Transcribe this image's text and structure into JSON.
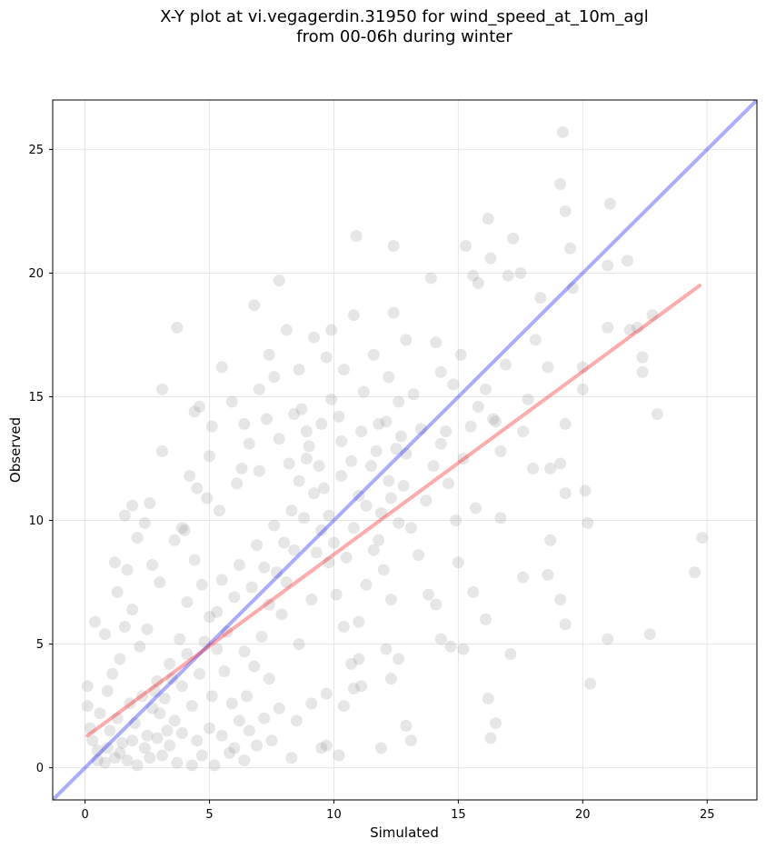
{
  "chart_data": {
    "type": "scatter",
    "title_lines": [
      "X-Y plot at vi.vegagerdin.31950 for wind_speed_at_10m_agl",
      "from 00-06h during winter"
    ],
    "xlabel": "Simulated",
    "ylabel": "Observed",
    "xlim": [
      -1.3,
      27.0
    ],
    "ylim": [
      -1.3,
      27.0
    ],
    "xticks": [
      0,
      5,
      10,
      15,
      20,
      25
    ],
    "yticks": [
      0,
      5,
      10,
      15,
      20,
      25
    ],
    "grid": true,
    "colors": {
      "points": "#808080",
      "identity_line": "#0000ff",
      "fit_line": "#ff0000",
      "grid": "#e6e6e6",
      "frame": "#000000"
    },
    "series": [
      {
        "kind": "scatter",
        "points": [
          [
            0.1,
            3.3
          ],
          [
            0.1,
            2.5
          ],
          [
            0.4,
            5.9
          ],
          [
            0.8,
            5.4
          ],
          [
            1.2,
            8.3
          ],
          [
            1.3,
            7.1
          ],
          [
            1.6,
            10.2
          ],
          [
            1.7,
            8.0
          ],
          [
            1.9,
            10.6
          ],
          [
            2.1,
            9.3
          ],
          [
            2.4,
            9.9
          ],
          [
            2.6,
            10.7
          ],
          [
            2.7,
            8.2
          ],
          [
            3.0,
            7.5
          ],
          [
            3.1,
            15.3
          ],
          [
            3.1,
            12.8
          ],
          [
            3.6,
            9.2
          ],
          [
            3.7,
            17.8
          ],
          [
            3.9,
            9.7
          ],
          [
            4.2,
            11.8
          ],
          [
            4.4,
            14.4
          ],
          [
            4.6,
            14.6
          ],
          [
            4.9,
            10.9
          ],
          [
            5.1,
            13.8
          ],
          [
            5.5,
            16.2
          ],
          [
            5.9,
            14.8
          ],
          [
            6.3,
            12.1
          ],
          [
            6.4,
            13.9
          ],
          [
            6.8,
            18.7
          ],
          [
            7.0,
            15.3
          ],
          [
            7.4,
            16.7
          ],
          [
            7.6,
            15.8
          ],
          [
            7.8,
            19.7
          ],
          [
            8.1,
            17.7
          ],
          [
            8.4,
            14.3
          ],
          [
            8.6,
            16.1
          ],
          [
            8.9,
            13.6
          ],
          [
            9.2,
            17.4
          ],
          [
            9.5,
            13.9
          ],
          [
            9.7,
            16.6
          ],
          [
            9.9,
            17.7
          ],
          [
            10.2,
            14.2
          ],
          [
            10.4,
            16.1
          ],
          [
            10.8,
            18.3
          ],
          [
            10.9,
            21.5
          ],
          [
            11.2,
            15.2
          ],
          [
            11.6,
            16.7
          ],
          [
            11.8,
            13.9
          ],
          [
            12.2,
            15.8
          ],
          [
            12.4,
            18.4
          ],
          [
            12.4,
            21.1
          ],
          [
            12.6,
            14.8
          ],
          [
            12.9,
            17.3
          ],
          [
            13.2,
            15.1
          ],
          [
            13.5,
            13.7
          ],
          [
            13.9,
            19.8
          ],
          [
            14.1,
            17.2
          ],
          [
            14.3,
            16.0
          ],
          [
            14.5,
            13.6
          ],
          [
            14.8,
            15.5
          ],
          [
            15.1,
            16.7
          ],
          [
            15.3,
            21.1
          ],
          [
            15.6,
            19.9
          ],
          [
            15.8,
            19.6
          ],
          [
            16.2,
            22.2
          ],
          [
            16.3,
            20.6
          ],
          [
            16.5,
            14.0
          ],
          [
            16.9,
            16.3
          ],
          [
            17.0,
            19.9
          ],
          [
            17.2,
            21.4
          ],
          [
            17.5,
            20.0
          ],
          [
            17.8,
            14.9
          ],
          [
            18.1,
            17.3
          ],
          [
            18.3,
            19.0
          ],
          [
            18.6,
            16.2
          ],
          [
            19.2,
            25.7
          ],
          [
            19.1,
            23.6
          ],
          [
            19.3,
            22.5
          ],
          [
            19.5,
            21.0
          ],
          [
            19.6,
            19.4
          ],
          [
            20.0,
            16.2
          ],
          [
            21.1,
            22.8
          ],
          [
            21.0,
            20.3
          ],
          [
            21.8,
            20.5
          ],
          [
            21.9,
            17.7
          ],
          [
            22.2,
            17.8
          ],
          [
            22.4,
            16.6
          ],
          [
            22.4,
            16.0
          ],
          [
            22.8,
            18.3
          ],
          [
            23.0,
            14.3
          ],
          [
            19.3,
            13.9
          ],
          [
            20.0,
            15.3
          ],
          [
            21.0,
            17.8
          ],
          [
            19.1,
            12.3
          ],
          [
            20.1,
            11.2
          ],
          [
            19.3,
            11.1
          ],
          [
            20.2,
            9.9
          ],
          [
            24.5,
            7.9
          ],
          [
            24.8,
            9.3
          ],
          [
            22.7,
            5.4
          ],
          [
            21.0,
            5.2
          ],
          [
            20.3,
            3.4
          ],
          [
            19.3,
            5.8
          ],
          [
            19.1,
            6.8
          ],
          [
            18.6,
            7.8
          ],
          [
            18.7,
            9.2
          ],
          [
            18.0,
            12.1
          ],
          [
            18.7,
            12.1
          ],
          [
            17.6,
            13.6
          ],
          [
            17.6,
            7.7
          ],
          [
            17.1,
            4.6
          ],
          [
            16.5,
            1.8
          ],
          [
            16.3,
            1.2
          ],
          [
            16.2,
            2.8
          ],
          [
            16.1,
            6.0
          ],
          [
            16.7,
            10.1
          ],
          [
            15.7,
            10.5
          ],
          [
            15.6,
            7.1
          ],
          [
            15.0,
            8.3
          ],
          [
            15.2,
            4.8
          ],
          [
            14.7,
            4.9
          ],
          [
            14.3,
            5.2
          ],
          [
            14.1,
            6.6
          ],
          [
            13.8,
            7.0
          ],
          [
            13.1,
            1.1
          ],
          [
            12.9,
            1.7
          ],
          [
            12.3,
            3.6
          ],
          [
            12.1,
            4.8
          ],
          [
            12.6,
            4.4
          ],
          [
            12.3,
            6.8
          ],
          [
            11.9,
            0.8
          ],
          [
            11.0,
            4.4
          ],
          [
            10.8,
            3.2
          ],
          [
            10.2,
            0.5
          ],
          [
            9.7,
            0.9
          ],
          [
            9.5,
            0.8
          ],
          [
            8.3,
            0.4
          ],
          [
            7.5,
            1.1
          ],
          [
            6.9,
            0.9
          ],
          [
            6.4,
            0.3
          ],
          [
            5.8,
            0.6
          ],
          [
            5.2,
            0.1
          ],
          [
            4.7,
            0.5
          ],
          [
            4.3,
            0.1
          ],
          [
            3.7,
            0.2
          ],
          [
            3.1,
            0.5
          ],
          [
            2.6,
            0.4
          ],
          [
            2.1,
            0.1
          ],
          [
            1.7,
            0.3
          ],
          [
            1.2,
            0.4
          ],
          [
            0.8,
            0.2
          ],
          [
            0.5,
            0.7
          ],
          [
            0.3,
            1.1
          ],
          [
            0.2,
            1.6
          ],
          [
            0.6,
            2.2
          ],
          [
            0.9,
            3.1
          ],
          [
            1.1,
            3.8
          ],
          [
            1.4,
            4.4
          ],
          [
            1.6,
            5.7
          ],
          [
            1.9,
            6.4
          ],
          [
            2.2,
            4.9
          ],
          [
            2.5,
            5.6
          ],
          [
            2.8,
            3.1
          ],
          [
            3.0,
            2.2
          ],
          [
            3.3,
            1.5
          ],
          [
            3.5,
            3.6
          ],
          [
            3.8,
            5.2
          ],
          [
            4.1,
            6.7
          ],
          [
            4.4,
            8.4
          ],
          [
            4.7,
            7.4
          ],
          [
            5.0,
            6.1
          ],
          [
            5.3,
            4.8
          ],
          [
            5.6,
            3.9
          ],
          [
            5.9,
            2.6
          ],
          [
            6.2,
            1.9
          ],
          [
            6.5,
            2.9
          ],
          [
            6.8,
            4.1
          ],
          [
            7.1,
            5.3
          ],
          [
            7.4,
            6.6
          ],
          [
            7.7,
            7.9
          ],
          [
            8.0,
            9.1
          ],
          [
            8.3,
            10.4
          ],
          [
            8.6,
            11.6
          ],
          [
            8.9,
            12.5
          ],
          [
            9.2,
            11.1
          ],
          [
            9.5,
            9.6
          ],
          [
            9.8,
            8.3
          ],
          [
            10.1,
            7.0
          ],
          [
            10.4,
            5.7
          ],
          [
            10.7,
            4.2
          ],
          [
            11.0,
            5.9
          ],
          [
            11.3,
            7.4
          ],
          [
            11.6,
            8.8
          ],
          [
            11.9,
            10.3
          ],
          [
            12.2,
            11.6
          ],
          [
            12.5,
            12.9
          ],
          [
            12.8,
            11.4
          ],
          [
            13.1,
            9.7
          ],
          [
            13.4,
            8.6
          ],
          [
            13.7,
            10.8
          ],
          [
            14.0,
            12.2
          ],
          [
            14.3,
            13.1
          ],
          [
            14.6,
            11.5
          ],
          [
            14.9,
            10.0
          ],
          [
            15.2,
            12.5
          ],
          [
            15.5,
            13.8
          ],
          [
            15.8,
            14.6
          ],
          [
            16.1,
            15.3
          ],
          [
            16.4,
            14.1
          ],
          [
            16.7,
            12.8
          ],
          [
            1.0,
            1.5
          ],
          [
            1.3,
            2.0
          ],
          [
            1.5,
            1.0
          ],
          [
            1.8,
            2.6
          ],
          [
            2.0,
            1.8
          ],
          [
            2.3,
            2.9
          ],
          [
            2.5,
            1.3
          ],
          [
            2.7,
            2.4
          ],
          [
            2.9,
            3.5
          ],
          [
            3.2,
            2.8
          ],
          [
            3.4,
            4.2
          ],
          [
            3.6,
            1.9
          ],
          [
            3.9,
            3.3
          ],
          [
            4.1,
            4.6
          ],
          [
            4.3,
            2.5
          ],
          [
            4.6,
            3.8
          ],
          [
            4.8,
            5.1
          ],
          [
            5.1,
            2.9
          ],
          [
            5.3,
            6.3
          ],
          [
            5.5,
            7.6
          ],
          [
            5.7,
            5.5
          ],
          [
            6.0,
            6.9
          ],
          [
            6.2,
            8.2
          ],
          [
            6.4,
            4.7
          ],
          [
            6.7,
            7.3
          ],
          [
            6.9,
            9.0
          ],
          [
            7.2,
            8.1
          ],
          [
            7.4,
            3.6
          ],
          [
            7.6,
            9.8
          ],
          [
            7.9,
            6.2
          ],
          [
            8.1,
            7.5
          ],
          [
            8.4,
            8.8
          ],
          [
            8.6,
            5.0
          ],
          [
            8.8,
            10.1
          ],
          [
            9.1,
            6.8
          ],
          [
            9.3,
            8.7
          ],
          [
            9.6,
            11.3
          ],
          [
            9.8,
            10.2
          ],
          [
            10.0,
            9.1
          ],
          [
            10.3,
            11.8
          ],
          [
            10.5,
            8.5
          ],
          [
            10.8,
            9.7
          ],
          [
            11.0,
            11.0
          ],
          [
            11.3,
            10.6
          ],
          [
            11.5,
            12.2
          ],
          [
            11.8,
            9.2
          ],
          [
            12.0,
            8.0
          ],
          [
            12.3,
            10.9
          ],
          [
            12.6,
            9.9
          ],
          [
            12.9,
            12.7
          ],
          [
            4.0,
            9.6
          ],
          [
            4.5,
            11.3
          ],
          [
            5.0,
            12.6
          ],
          [
            5.4,
            10.4
          ],
          [
            6.1,
            11.5
          ],
          [
            6.6,
            13.1
          ],
          [
            7.0,
            12.0
          ],
          [
            7.3,
            14.1
          ],
          [
            7.8,
            13.3
          ],
          [
            8.2,
            12.3
          ],
          [
            8.7,
            14.5
          ],
          [
            9.0,
            13.0
          ],
          [
            9.4,
            12.2
          ],
          [
            9.9,
            14.9
          ],
          [
            10.3,
            13.2
          ],
          [
            10.7,
            12.4
          ],
          [
            11.1,
            13.6
          ],
          [
            11.7,
            12.8
          ],
          [
            12.1,
            14.0
          ],
          [
            12.7,
            13.4
          ],
          [
            0.5,
            0.3
          ],
          [
            0.9,
            0.8
          ],
          [
            1.4,
            0.6
          ],
          [
            1.9,
            1.1
          ],
          [
            2.4,
            0.8
          ],
          [
            2.9,
            1.2
          ],
          [
            3.4,
            0.9
          ],
          [
            3.9,
            1.4
          ],
          [
            4.5,
            1.1
          ],
          [
            5.0,
            1.6
          ],
          [
            5.5,
            1.3
          ],
          [
            6.0,
            0.8
          ],
          [
            6.6,
            1.5
          ],
          [
            7.2,
            2.0
          ],
          [
            7.8,
            2.4
          ],
          [
            8.5,
            1.9
          ],
          [
            9.1,
            2.6
          ],
          [
            9.7,
            3.0
          ],
          [
            10.4,
            2.5
          ],
          [
            11.1,
            3.3
          ]
        ]
      },
      {
        "kind": "line",
        "name": "identity",
        "from": [
          -1.3,
          -1.3
        ],
        "to": [
          27.0,
          27.0
        ]
      },
      {
        "kind": "line",
        "name": "fit",
        "from": [
          0.1,
          1.3
        ],
        "to": [
          24.7,
          19.5
        ]
      }
    ]
  }
}
